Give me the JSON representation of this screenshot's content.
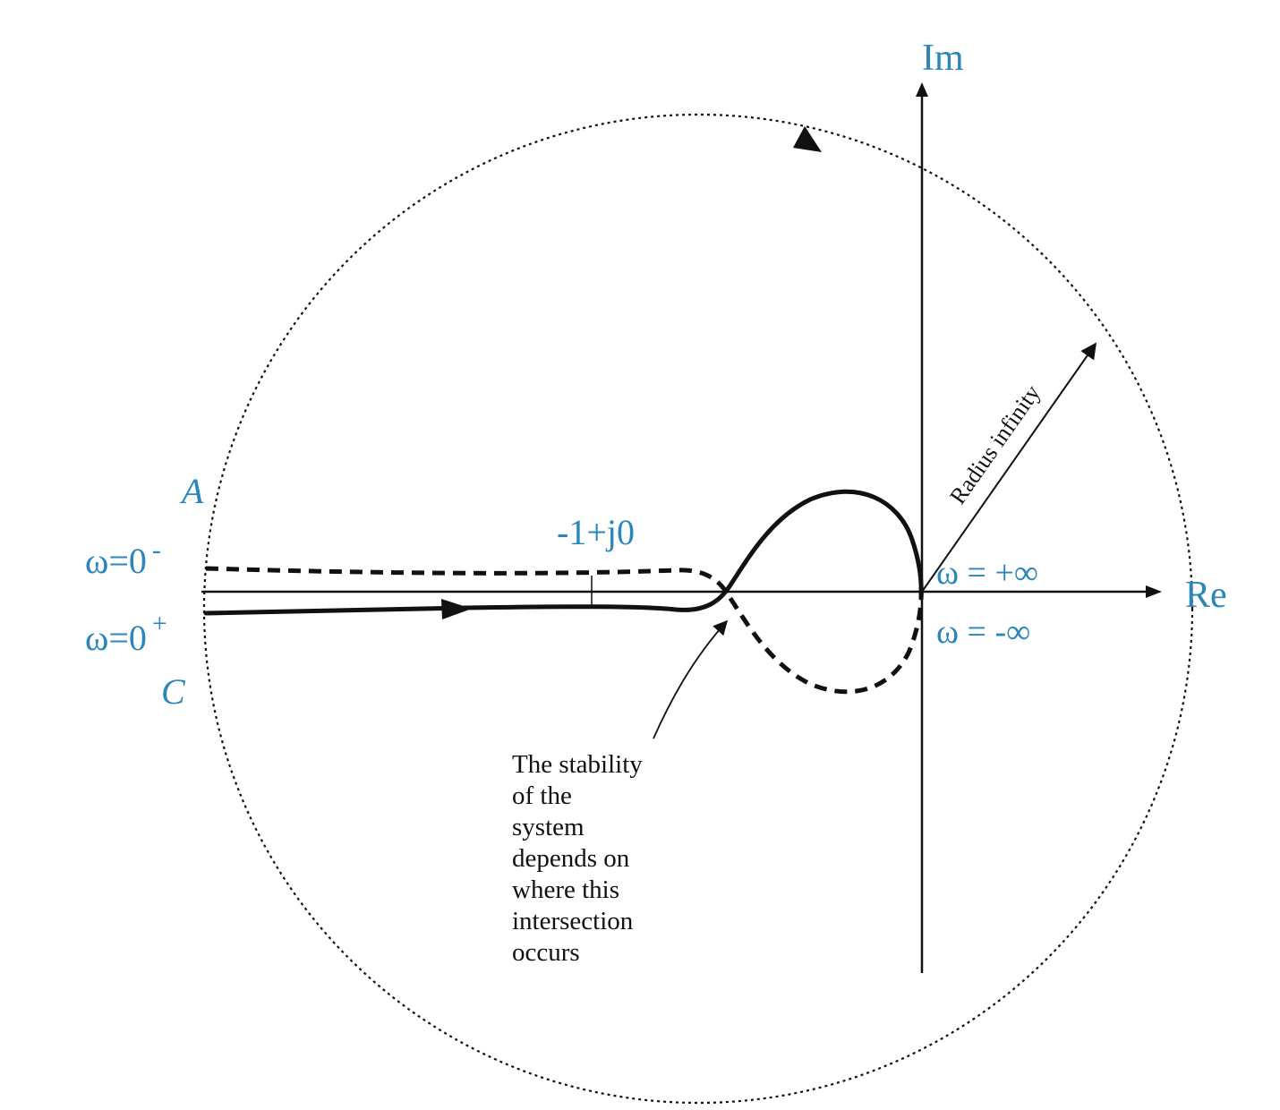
{
  "axes": {
    "im_label": "Im",
    "re_label": "Re"
  },
  "labels": {
    "critical_point": "-1+j0",
    "point_a": "A",
    "point_c": "C",
    "omega_zero_minus_base": "ω=0",
    "omega_zero_minus_sup": "-",
    "omega_zero_plus_base": "ω=0",
    "omega_zero_plus_sup": "+",
    "omega_plus_inf": "ω = +∞",
    "omega_minus_inf": "ω = -∞",
    "radius": "Radius infinity"
  },
  "annotation": {
    "lines": [
      "The stability",
      "of the",
      "system",
      "depends on",
      "where this",
      "intersection",
      "occurs"
    ]
  },
  "colors": {
    "accent": "#2a86bb",
    "ink": "#111111"
  }
}
